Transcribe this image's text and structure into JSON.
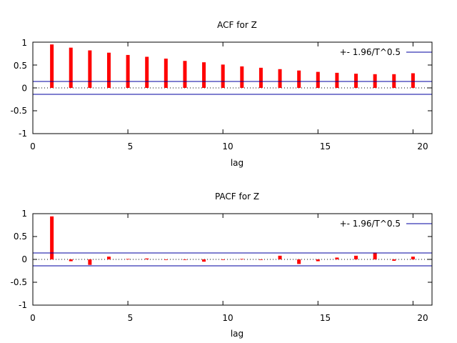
{
  "colors": {
    "bars": "#ff0000",
    "conf_band": "#0000a0",
    "axes": "#000000",
    "zero_line": "#000000"
  },
  "chart_data": [
    {
      "type": "bar",
      "title": "ACF for Z",
      "xlabel": "lag",
      "ylabel": "",
      "xlim": [
        0,
        21
      ],
      "ylim": [
        -1,
        1
      ],
      "x_ticks": [
        0,
        5,
        10,
        15,
        20
      ],
      "y_ticks": [
        -1,
        -0.5,
        0,
        0.5,
        1
      ],
      "x_tick_labels": [
        "0",
        "5",
        "10",
        "15",
        "20"
      ],
      "y_tick_labels": [
        "-1",
        "-0.5",
        "0",
        "0.5",
        "1"
      ],
      "legend": {
        "label": "+- 1.96/T^0.5",
        "position": "top-right"
      },
      "confidence_band": 0.14,
      "x": [
        1,
        2,
        3,
        4,
        5,
        6,
        7,
        8,
        9,
        10,
        11,
        12,
        13,
        14,
        15,
        16,
        17,
        18,
        19,
        20
      ],
      "values": [
        0.95,
        0.88,
        0.82,
        0.77,
        0.72,
        0.68,
        0.64,
        0.59,
        0.56,
        0.51,
        0.47,
        0.44,
        0.41,
        0.38,
        0.35,
        0.33,
        0.31,
        0.3,
        0.3,
        0.32
      ]
    },
    {
      "type": "bar",
      "title": "PACF for Z",
      "xlabel": "lag",
      "ylabel": "",
      "xlim": [
        0,
        21
      ],
      "ylim": [
        -1,
        1
      ],
      "x_ticks": [
        0,
        5,
        10,
        15,
        20
      ],
      "y_ticks": [
        -1,
        -0.5,
        0,
        0.5,
        1
      ],
      "x_tick_labels": [
        "0",
        "5",
        "10",
        "15",
        "20"
      ],
      "y_tick_labels": [
        "-1",
        "-0.5",
        "0",
        "0.5",
        "1"
      ],
      "legend": {
        "label": "+- 1.96/T^0.5",
        "position": "top-right"
      },
      "confidence_band": 0.14,
      "x": [
        1,
        2,
        3,
        4,
        5,
        6,
        7,
        8,
        9,
        10,
        11,
        12,
        13,
        14,
        15,
        16,
        17,
        18,
        19,
        20
      ],
      "values": [
        0.94,
        -0.04,
        -0.12,
        0.06,
        0.01,
        0.02,
        0.0,
        -0.01,
        -0.05,
        0.0,
        0.01,
        0.0,
        0.08,
        -0.1,
        -0.04,
        0.04,
        0.08,
        0.15,
        -0.03,
        0.06
      ]
    }
  ]
}
